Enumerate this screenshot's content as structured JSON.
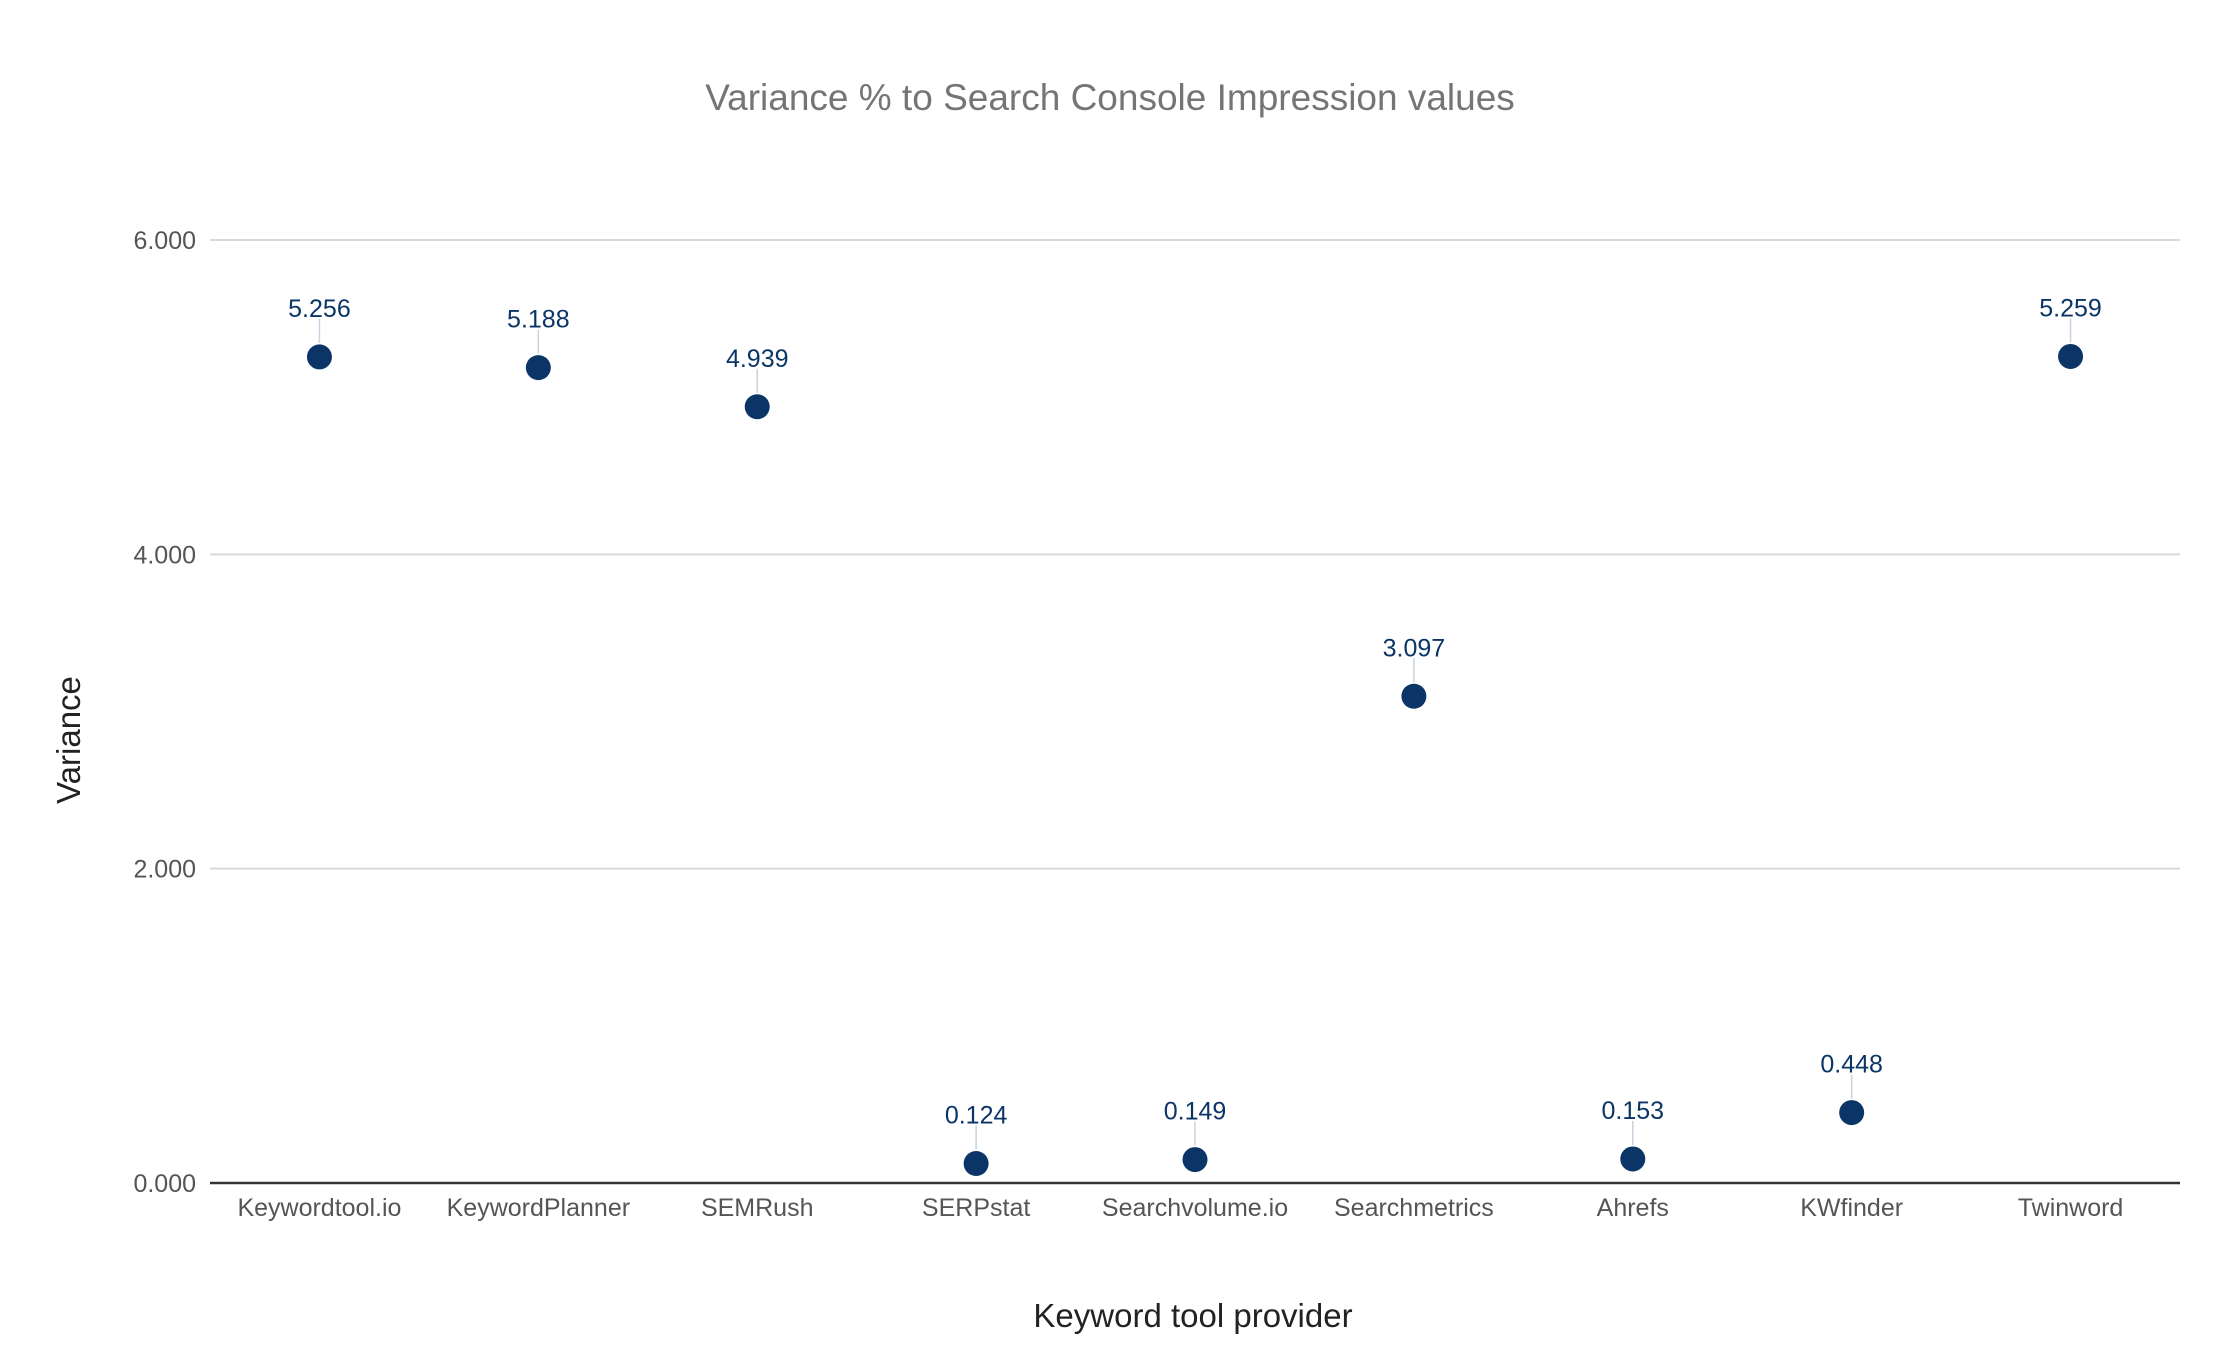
{
  "chart_data": {
    "type": "scatter",
    "title": "Variance % to Search Console Impression values",
    "xlabel": "Keyword tool provider",
    "ylabel": "Variance",
    "categories": [
      "Keywordtool.io",
      "KeywordPlanner",
      "SEMRush",
      "SERPstat",
      "Searchvolume.io",
      "Searchmetrics",
      "Ahrefs",
      "KWfinder",
      "Twinword"
    ],
    "series": [
      {
        "values": [
          5.256,
          5.188,
          4.939,
          0.124,
          0.149,
          3.097,
          0.153,
          0.448,
          5.259
        ]
      }
    ],
    "data_labels": [
      "5.256",
      "5.188",
      "4.939",
      "0.124",
      "0.149",
      "3.097",
      "0.153",
      "0.448",
      "5.259"
    ],
    "ylim": [
      0,
      6
    ],
    "yticks": [
      0,
      2,
      4,
      6
    ],
    "ytick_labels": [
      "0.000",
      "2.000",
      "4.000",
      "6.000"
    ],
    "grid": true,
    "legend": "none",
    "colors": {
      "marker": "#0b3566",
      "label": "#0b3566",
      "grid": "#d9d9d9",
      "baseline": "#333333"
    }
  }
}
